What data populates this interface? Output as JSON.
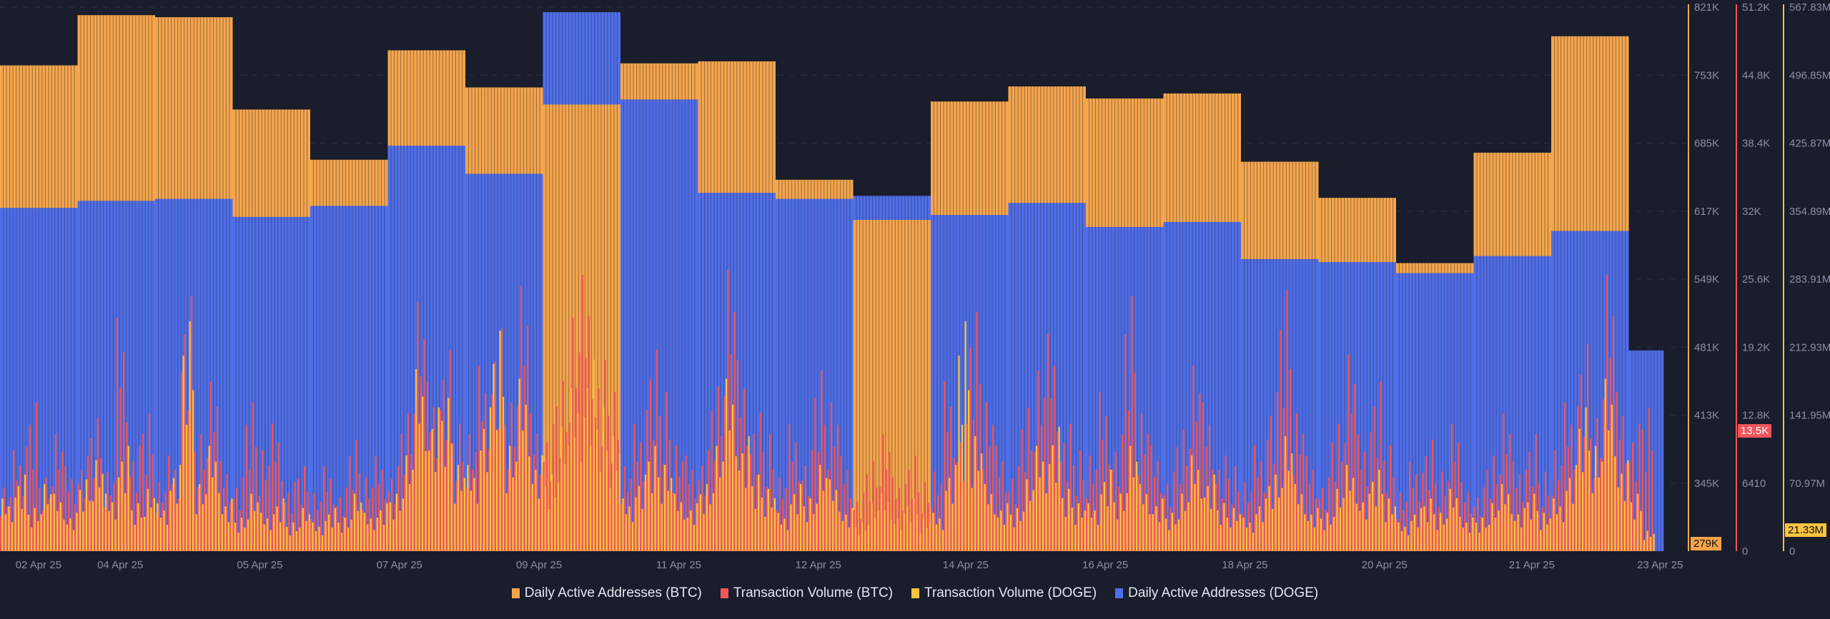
{
  "chart_data": {
    "type": "bar",
    "title": "",
    "x_unit": "day index (hourly bars, 2 Apr 25 – 23 Apr 25)",
    "x_tick_labels": [
      "02 Apr 25",
      "04 Apr 25",
      "05 Apr 25",
      "07 Apr 25",
      "09 Apr 25",
      "11 Apr 25",
      "12 Apr 25",
      "14 Apr 25",
      "16 Apr 25",
      "18 Apr 25",
      "20 Apr 25",
      "21 Apr 25",
      "23 Apr 25"
    ],
    "x_tick_positions_days": [
      0.2,
      1.55,
      3.35,
      5.15,
      6.95,
      8.75,
      10.55,
      12.45,
      14.25,
      16.05,
      17.85,
      19.75,
      21.7
    ],
    "days_total": 21.45,
    "axes": [
      {
        "name": "Daily Active Addresses (BTC)",
        "range": [
          279000,
          821000
        ],
        "ticks": [
          "821K",
          "753K",
          "685K",
          "617K",
          "549K",
          "481K",
          "413K",
          "345K"
        ],
        "current_label": "279K",
        "color": "#f5a54a"
      },
      {
        "name": "Transaction Volume (BTC)",
        "range": [
          0,
          51200
        ],
        "ticks": [
          "51.2K",
          "44.8K",
          "38.4K",
          "32K",
          "25.6K",
          "19.2K",
          "12.8K",
          "6410",
          "0"
        ],
        "current_label": "13.5K",
        "current_value": 13500,
        "color": "#f0555a"
      },
      {
        "name": "Transaction Volume (DOGE)",
        "range": [
          0,
          567830000
        ],
        "ticks": [
          "567.83M",
          "496.85M",
          "425.87M",
          "354.89M",
          "283.91M",
          "212.93M",
          "141.95M",
          "70.97M",
          "0"
        ],
        "current_label": "21.33M",
        "current_value": 21330000,
        "color": "#f9c440"
      }
    ],
    "series": [
      {
        "name": "Daily Active Addresses (BTC)",
        "color": "#f5a54a",
        "resolution": "daily",
        "values": [
          763000,
          813000,
          811000,
          719000,
          669000,
          778000,
          741000,
          724000,
          765000,
          767000,
          649000,
          609000,
          727000,
          742000,
          730000,
          735000,
          667000,
          631000,
          566000,
          676000,
          792000,
          null
        ]
      },
      {
        "name": "Daily Active Addresses (DOGE)",
        "color": "#4f6ee8",
        "resolution": "daily",
        "values": [
          621000,
          628000,
          630000,
          612000,
          623000,
          683000,
          655000,
          816000,
          729000,
          636000,
          630000,
          633000,
          614000,
          626000,
          602000,
          607000,
          570000,
          567000,
          556000,
          573000,
          598000,
          479000
        ]
      },
      {
        "name": "Transaction Volume (BTC)",
        "color": "#f0555a",
        "resolution": "4h",
        "values": [
          6000,
          9500,
          14000,
          7000,
          11000,
          8000,
          9000,
          12500,
          7500,
          22000,
          10000,
          13000,
          6500,
          9000,
          24000,
          11000,
          16000,
          8500,
          7000,
          14000,
          9500,
          12000,
          6500,
          8000,
          5500,
          8000,
          6000,
          10500,
          7000,
          9000,
          8000,
          13000,
          23500,
          16000,
          19000,
          12000,
          11000,
          17500,
          21000,
          14000,
          25000,
          13000,
          12000,
          16000,
          22000,
          26000,
          18000,
          15000,
          8000,
          12000,
          19000,
          15000,
          10000,
          9000,
          9500,
          15500,
          26500,
          18000,
          13000,
          11000,
          7000,
          12000,
          9500,
          17000,
          14000,
          9000,
          5500,
          8500,
          11000,
          7000,
          9000,
          6500,
          7500,
          16000,
          12000,
          22500,
          14000,
          10000,
          8000,
          13500,
          17000,
          20500,
          12000,
          9500,
          9000,
          15000,
          11000,
          24000,
          13000,
          10000,
          7500,
          11500,
          17500,
          14000,
          9000,
          8000,
          6500,
          10000,
          15000,
          24500,
          13000,
          9000,
          7000,
          12000,
          18500,
          11000,
          16000,
          10000,
          5500,
          8500,
          10500,
          7500,
          12000,
          6500,
          6000,
          9000,
          13000,
          8500,
          11000,
          7500,
          9500,
          14000,
          19500,
          12500,
          26000,
          15000,
          12000,
          13500
        ]
      },
      {
        "name": "Transaction Volume (DOGE)",
        "color": "#f9c440",
        "resolution": "4h",
        "values": [
          55000000,
          80000000,
          45000000,
          70000000,
          60000000,
          40000000,
          75000000,
          95000000,
          60000000,
          110000000,
          50000000,
          65000000,
          50000000,
          90000000,
          240000000,
          70000000,
          110000000,
          55000000,
          35000000,
          60000000,
          40000000,
          55000000,
          30000000,
          45000000,
          30000000,
          45000000,
          35000000,
          60000000,
          40000000,
          50000000,
          60000000,
          100000000,
          190000000,
          150000000,
          160000000,
          90000000,
          90000000,
          150000000,
          230000000,
          110000000,
          180000000,
          100000000,
          80000000,
          130000000,
          170000000,
          200000000,
          150000000,
          120000000,
          55000000,
          80000000,
          110000000,
          90000000,
          60000000,
          50000000,
          70000000,
          110000000,
          180000000,
          120000000,
          80000000,
          65000000,
          40000000,
          70000000,
          55000000,
          90000000,
          75000000,
          45000000,
          30000000,
          50000000,
          60000000,
          40000000,
          55000000,
          35000000,
          40000000,
          90000000,
          240000000,
          120000000,
          70000000,
          50000000,
          45000000,
          75000000,
          110000000,
          130000000,
          65000000,
          50000000,
          50000000,
          85000000,
          60000000,
          110000000,
          70000000,
          55000000,
          40000000,
          60000000,
          100000000,
          80000000,
          50000000,
          45000000,
          35000000,
          55000000,
          80000000,
          120000000,
          70000000,
          45000000,
          40000000,
          65000000,
          90000000,
          60000000,
          85000000,
          55000000,
          30000000,
          45000000,
          55000000,
          40000000,
          65000000,
          35000000,
          35000000,
          50000000,
          70000000,
          45000000,
          60000000,
          40000000,
          55000000,
          90000000,
          150000000,
          110000000,
          180000000,
          95000000,
          60000000,
          21330000
        ]
      }
    ],
    "legend_position": "bottom-center",
    "grid": true
  },
  "legend": [
    {
      "label": "Daily Active Addresses (BTC)",
      "color": "#f5a54a"
    },
    {
      "label": "Transaction Volume (BTC)",
      "color": "#f0555a"
    },
    {
      "label": "Transaction Volume (DOGE)",
      "color": "#f9c440"
    },
    {
      "label": "Daily Active Addresses (DOGE)",
      "color": "#4f6ee8"
    }
  ]
}
